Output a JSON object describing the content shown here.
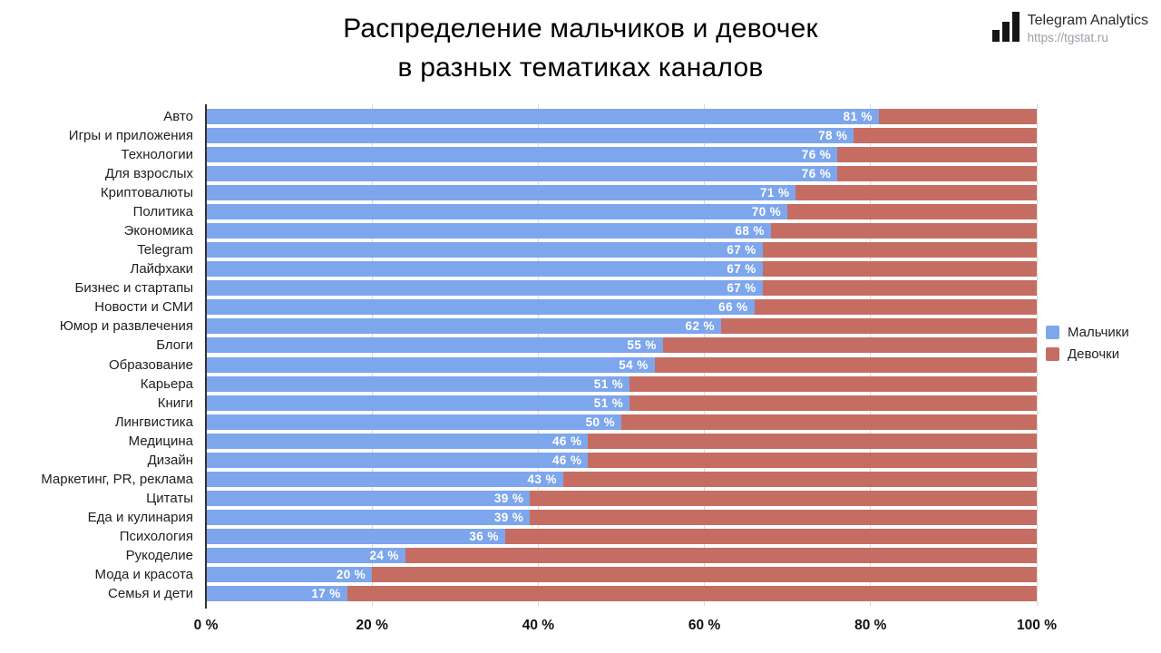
{
  "title": {
    "line1": "Распределение мальчиков и девочек",
    "line2": "в разных тематиках каналов"
  },
  "logo": {
    "name": "Telegram Analytics",
    "url": "https://tgstat.ru"
  },
  "chart_data": {
    "type": "bar",
    "orientation": "horizontal",
    "stacked": true,
    "unit": "%",
    "title": "Распределение мальчиков и девочек в разных тематиках каналов",
    "xlabel": "",
    "ylabel": "",
    "xlim": [
      0,
      100
    ],
    "grid": true,
    "legend_position": "right",
    "x_tick_values": [
      0,
      20,
      40,
      60,
      80,
      100
    ],
    "x_ticks": [
      "0 %",
      "20 %",
      "40 %",
      "60 %",
      "80 %",
      "100 %"
    ],
    "categories": [
      "Авто",
      "Игры и приложения",
      "Технологии",
      "Для взрослых",
      "Криптовалюты",
      "Политика",
      "Экономика",
      "Telegram",
      "Лайфхаки",
      "Бизнес и стартапы",
      "Новости и СМИ",
      "Юмор и развлечения",
      "Блоги",
      "Образование",
      "Карьера",
      "Книги",
      "Лингвистика",
      "Медицина",
      "Дизайн",
      "Маркетинг, PR, реклама",
      "Цитаты",
      "Еда и кулинария",
      "Психология",
      "Рукоделие",
      "Мода и красота",
      "Семья и дети"
    ],
    "series": [
      {
        "name": "Мальчики",
        "color": "#7da6ec",
        "values": [
          81,
          78,
          76,
          76,
          71,
          70,
          68,
          67,
          67,
          67,
          66,
          62,
          55,
          54,
          51,
          51,
          50,
          46,
          46,
          43,
          39,
          39,
          36,
          24,
          20,
          17
        ]
      },
      {
        "name": "Девочки",
        "color": "#c66d63",
        "values": [
          19,
          22,
          24,
          24,
          29,
          30,
          32,
          33,
          33,
          33,
          34,
          38,
          45,
          46,
          49,
          49,
          50,
          54,
          54,
          57,
          61,
          61,
          64,
          76,
          80,
          83
        ]
      }
    ],
    "bar_label_series": "Мальчики",
    "bar_label_format": "{value} %"
  }
}
